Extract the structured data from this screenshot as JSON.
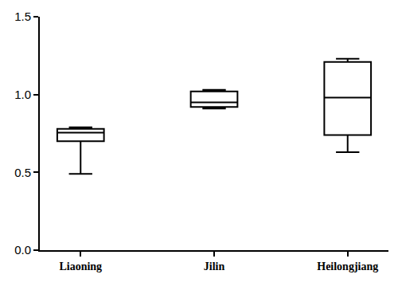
{
  "chart_data": {
    "type": "box",
    "categories": [
      "Liaoning",
      "Jilin",
      "Heilongjiang"
    ],
    "min": [
      0.49,
      0.91,
      0.63
    ],
    "q1": [
      0.7,
      0.92,
      0.74
    ],
    "median": [
      0.755,
      0.95,
      0.98
    ],
    "q3": [
      0.78,
      1.02,
      1.21
    ],
    "max": [
      0.79,
      1.03,
      1.23
    ],
    "color": "#000000",
    "ylim": [
      0,
      1.5
    ],
    "yticks": [
      {
        "value": 0,
        "label": "0.0"
      },
      0.5,
      {
        "value": 1,
        "label": "1.0"
      },
      1.5
    ],
    "grid": false
  }
}
